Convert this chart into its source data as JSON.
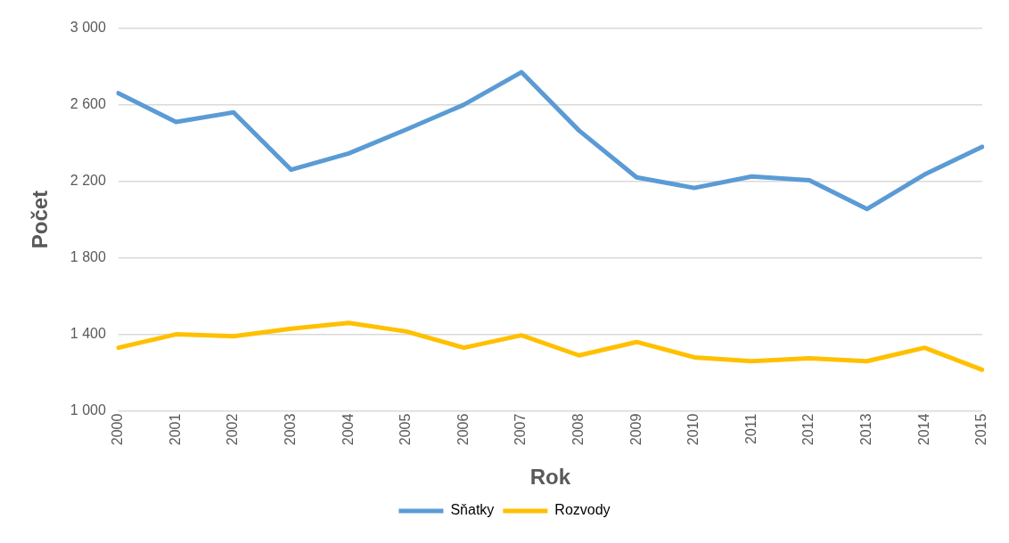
{
  "chart_data": {
    "type": "line",
    "xlabel": "Rok",
    "ylabel": "Počet",
    "categories": [
      "2000",
      "2001",
      "2002",
      "2003",
      "2004",
      "2005",
      "2006",
      "2007",
      "2008",
      "2009",
      "2010",
      "2011",
      "2012",
      "2013",
      "2014",
      "2015"
    ],
    "series": [
      {
        "name": "Sňatky",
        "color": "#5b9bd5",
        "values": [
          2660,
          2510,
          2560,
          2260,
          2345,
          2470,
          2600,
          2770,
          2465,
          2220,
          2165,
          2225,
          2205,
          2055,
          2235,
          2380
        ]
      },
      {
        "name": "Rozvody",
        "color": "#ffc000",
        "values": [
          1330,
          1400,
          1390,
          1430,
          1460,
          1415,
          1330,
          1395,
          1290,
          1360,
          1280,
          1260,
          1275,
          1260,
          1330,
          1215
        ]
      }
    ],
    "ylim": [
      1000,
      3000
    ],
    "yticks": [
      {
        "value": 1000,
        "label": "1 000"
      },
      {
        "value": 1400,
        "label": "1 400"
      },
      {
        "value": 1800,
        "label": "1 800"
      },
      {
        "value": 2200,
        "label": "2 200"
      },
      {
        "value": 2600,
        "label": "2 600"
      },
      {
        "value": 3000,
        "label": "3 000"
      }
    ],
    "grid": "y",
    "legend": "bottom",
    "marker": "none",
    "line_style": "solid"
  }
}
